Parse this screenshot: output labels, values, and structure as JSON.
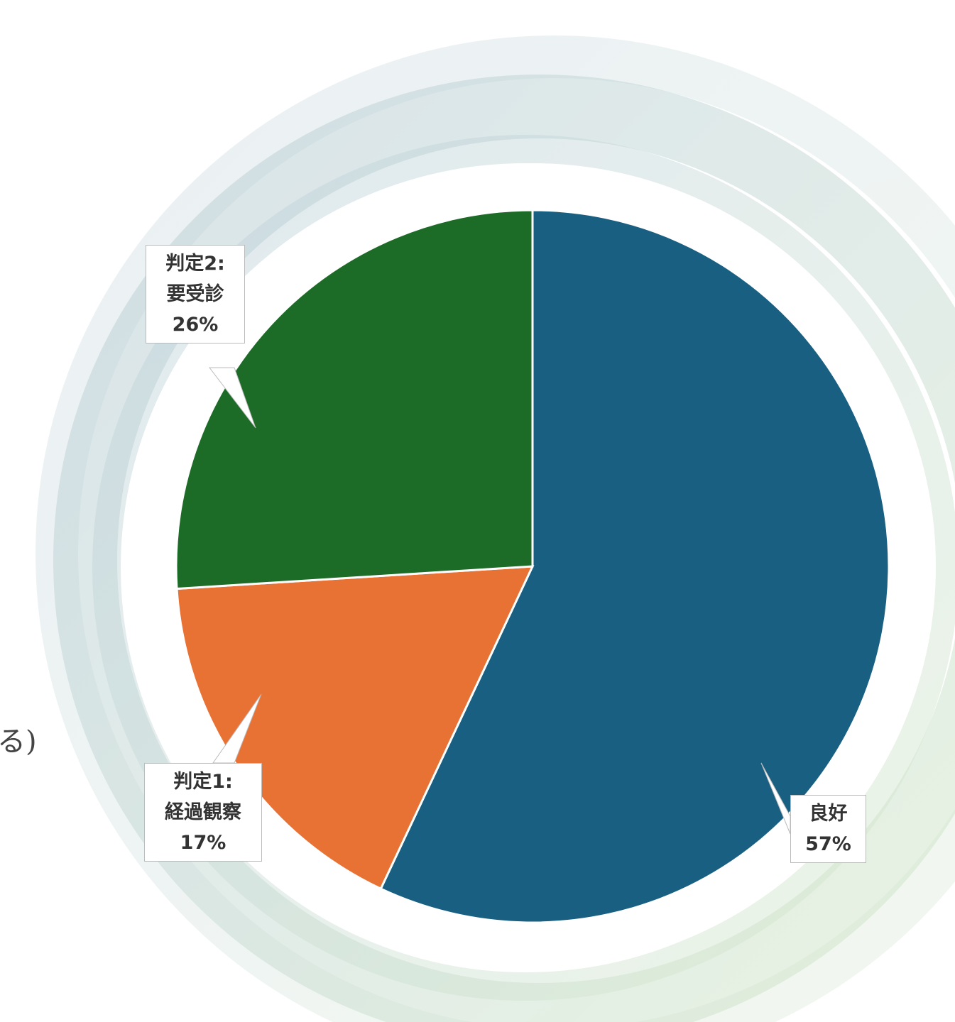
{
  "chart_data": {
    "type": "pie",
    "categories": [
      "良好",
      "判定1:\n経過観察",
      "判定2:\n要受診"
    ],
    "values": [
      57,
      17,
      26
    ],
    "value_labels": [
      "57%",
      "17%",
      "26%"
    ],
    "colors": [
      "#185f82",
      "#e87134",
      "#1c6b27"
    ],
    "annotations": [
      "る)"
    ]
  }
}
